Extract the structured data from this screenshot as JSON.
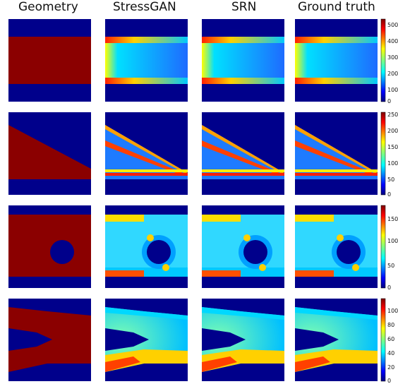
{
  "columns": [
    "Geometry",
    "StressGAN",
    "SRN",
    "Ground truth"
  ],
  "rows": [
    {
      "shape": "rect",
      "colorbar_ticks": [
        "500",
        "400",
        "300",
        "200",
        "100",
        "0"
      ]
    },
    {
      "shape": "triangle",
      "colorbar_ticks": [
        "250",
        "200",
        "150",
        "100",
        "50",
        "0"
      ]
    },
    {
      "shape": "hole",
      "colorbar_ticks": [
        "150",
        "100",
        "50",
        "0"
      ]
    },
    {
      "shape": "fork",
      "colorbar_ticks": [
        "100",
        "80",
        "60",
        "40",
        "20",
        "0"
      ]
    }
  ],
  "colors": {
    "solid": "#8b0000",
    "empty": "#00008b"
  }
}
